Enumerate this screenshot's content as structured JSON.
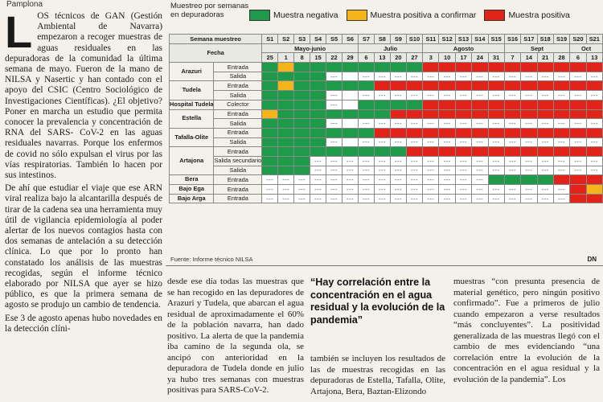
{
  "location": "Pamplona",
  "article": {
    "dropcap": "L",
    "p1": "OS técnicos de GAN (Gestión Ambiental de Navarra) empezaron a recoger muestras de aguas residuales en las depuradoras de la comunidad la última semana de mayo. Fueron de la mano de NILSA y Nasertic y han contado con el apoyo del CSIC (Centro Sociológico de Investigaciones Científicas). ¿El objetivo? Poner en marcha un estudio que permita conocer la prevalencia y concentración de RNA del SARS- CoV-2 en las aguas residuales navarras. Porque los enfermos de covid no sólo expulsan el virus por las vías respiratorias. También lo hacen por sus intestinos.",
    "p2": "De ahí que estudiar el viaje que ese ARN viral realiza bajo la alcantarilla después de tirar de la cadena sea una herramienta muy útil de vigilancia epidemiología al poder alertar de los nuevos contagios hasta con dos semanas de antelación a su detección clínica. Lo que por lo pronto han constatado los análisis de las muestras recogidas, según el informe técnico elaborado por NILSA que ayer se hizo público, es que la primera semana de agosto se produjo un cambio de tendencia.",
    "p3": "Ese 3 de agosto apenas hubo novedades en la detección clíni-",
    "col2": "desde ese día todas las muestras que se han recogido en las depuradores de Arazuri y Tudela, que abarcan el agua residual de aproximadamente el 60% de la población navarra, han dado positivo. La alerta de que la pandemia iba camino de la segunda ola, se ancipó con anterioridad en la depuradora de Tudela donde en julio ya hubo tres semanas con muestras positivas para SARS-CoV-2.",
    "quote": "“Hay correlación entre la concentración en el agua residual y la evolución de la pandemia”",
    "col3": "también se incluyen los resultados de las de muestras recogidas en las depuradoras de Estella, Tafalla, Olite, Artajona, Bera, Baztan-Elizondo",
    "col4": "muestras “con presunta presencia de material genético, pero ningún positivo confirmado”. Fue a primeros de julio cuando empezaron a verse resultados “más concluyentes”. La positividad generalizada de las muestras llegó con el cambio de mes evidenciando “una correlación entre la evolución de la concentración en el agua residual y la evolución de la pandemia”. Los"
  },
  "infographic": {
    "subtitle": "Muestreo por semanas en depuradoras",
    "legend": [
      {
        "label": "Muestra negativa",
        "color": "#1f9a4a"
      },
      {
        "label": "Muestra positiva a confirmar",
        "color": "#f4b41a"
      },
      {
        "label": "Muestra positiva",
        "color": "#e2231a"
      }
    ],
    "header_semana": "Semana muestreo",
    "header_fecha": "Fecha",
    "weeks": [
      "S1",
      "S2",
      "S3",
      "S4",
      "S5",
      "S6",
      "S7",
      "S8",
      "S9",
      "S10",
      "S11",
      "S12",
      "S13",
      "S14",
      "S15",
      "S16",
      "S17",
      "S18",
      "S19",
      "S20",
      "S21"
    ],
    "months": [
      {
        "label": "Mayo-junio",
        "span": 6
      },
      {
        "label": "Julio",
        "span": 4
      },
      {
        "label": "Agosto",
        "span": 5
      },
      {
        "label": "Sept",
        "span": 4
      },
      {
        "label": "Oct",
        "span": 2
      }
    ],
    "days": [
      "25",
      "1",
      "8",
      "15",
      "22",
      "29",
      "6",
      "13",
      "20",
      "27",
      "3",
      "10",
      "17",
      "24",
      "31",
      "7",
      "14",
      "21",
      "28",
      "6",
      "13"
    ],
    "empty_mark": "---",
    "sites": [
      {
        "name": "Arazuri",
        "rows": [
          {
            "type": "Entrada",
            "cells": "NCNNNNNNNNPPPPPPPPPPP"
          },
          {
            "type": "Salida",
            "cells": "NNNNE-EEEEEEEEEEEEEEE"
          }
        ]
      },
      {
        "name": "Tudela",
        "rows": [
          {
            "type": "Entrada",
            "cells": "NCNNNNNPPPPPPPPPPPPPP"
          },
          {
            "type": "Salida",
            "cells": "NNNNE-EEEEEEEEEEEEEEE"
          }
        ]
      },
      {
        "name": "Hospital Tudela",
        "rows": [
          {
            "type": "Colector",
            "cells": "NNNNE-NNNNPPPPPPPPPPP"
          }
        ]
      },
      {
        "name": "Estella",
        "rows": [
          {
            "type": "Entrada",
            "cells": "CNNNNNNNPPPPPPPPPPPPP"
          },
          {
            "type": "Salida",
            "cells": "NNNNE-EEEEEEEEEEEEEEE"
          }
        ]
      },
      {
        "name": "Tafalla-Olite",
        "rows": [
          {
            "type": "Entrada",
            "cells": "NNNNNNNPPPPPPPPPPPPPP"
          },
          {
            "type": "Salida",
            "cells": "NNNNE-EEEEEEEEEEEEEEE"
          }
        ]
      },
      {
        "name": "Artajona",
        "rows": [
          {
            "type": "Entrada",
            "cells": "NNNNNNNNNPPPPPPPPPPPP"
          },
          {
            "type": "Salida secundario",
            "cells": "NNNEEEEEEEEEEEEEEEEEE"
          },
          {
            "type": "Salida",
            "cells": "NNNEEEEEEEEEEEEEEEEEE"
          }
        ]
      },
      {
        "name": "Bera",
        "rows": [
          {
            "type": "Entrada",
            "cells": "EEEEEEEEEEEEEENNNNPPP"
          }
        ]
      },
      {
        "name": "Bajo Ega",
        "rows": [
          {
            "type": "Entrada",
            "cells": "EEEEEEEEEEEEEEEEEEEPC"
          }
        ]
      },
      {
        "name": "Bajo Arga",
        "rows": [
          {
            "type": "Entrada",
            "cells": "EEEEEEEEEEEEEEEEEEEPP"
          }
        ]
      }
    ],
    "source": "Fuente: Informe técnico NILSA",
    "logo": "DN"
  }
}
